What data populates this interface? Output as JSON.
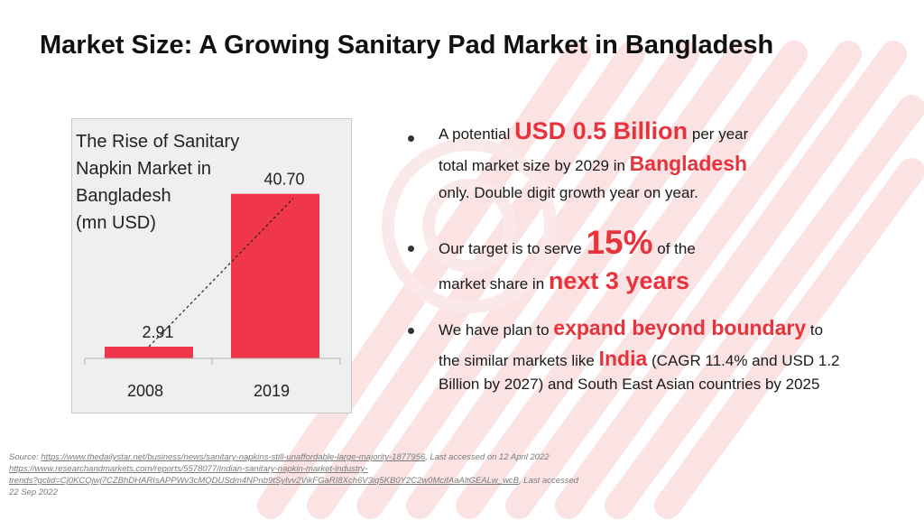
{
  "slide": {
    "title": "Market Size: A Growing Sanitary Pad Market in Bangladesh"
  },
  "colors": {
    "accent": "#e8323c",
    "bar": "#f0364a",
    "stripe": "#fbe3e3"
  },
  "chart_data": {
    "type": "bar",
    "title_lines": [
      "The Rise of Sanitary",
      "Napkin Market in",
      "Bangladesh",
      "(mn USD)"
    ],
    "categories": [
      "2008",
      "2019"
    ],
    "values": [
      2.91,
      40.7
    ],
    "value_labels": [
      "2.91",
      "40.70"
    ],
    "trendline": "dashed",
    "ylim": [
      0,
      48
    ],
    "grid": false,
    "legend": "none"
  },
  "bullets": {
    "b1": {
      "l1_pre": "A potential ",
      "l1_hl": "USD 0.5 Billion",
      "l1_post": " per year",
      "l2_pre": "total market size by 2029 in ",
      "l2_hl": "Bangladesh",
      "l3": "only. Double digit growth year on year."
    },
    "b2": {
      "l1_pre": "Our target is to serve ",
      "l1_hl": "15%",
      "l1_post": " of the",
      "l2_pre": "market share in ",
      "l2_hl": "next 3 years"
    },
    "b3": {
      "l1_pre": "We have plan to ",
      "l1_hl": "expand beyond boundary",
      "l1_post": " to",
      "l2_pre": "the similar markets like ",
      "l2_hl": "India",
      "l2_post": " (CAGR 11.4% and USD 1.2",
      "l3": "Billion by 2027) and South East Asian countries by 2025"
    }
  },
  "source": {
    "label": "Source: ",
    "link1": "https://www.thedailystar.net/business/news/sanitary-napkins-still-unaffordable-large-majority-1877956",
    "access1": ",  Last accessed on 12 April 2022",
    "link2a": "https://www.researchandmarkets.com/reports/5578077/indian-sanitary-napkin-market-industry-",
    "link2b": "trends?gclid=Cj0KCQjwj7CZBhDHARIsAPPWv3cMQDUSdm4NPnb9tSyIvv2VikFGaRI8Xch6V3iq5KB0Y2C2w0McifAaAltGEALw_wcB",
    "access2": ", Last  accessed",
    "access2b": "22  Sep 2022"
  }
}
